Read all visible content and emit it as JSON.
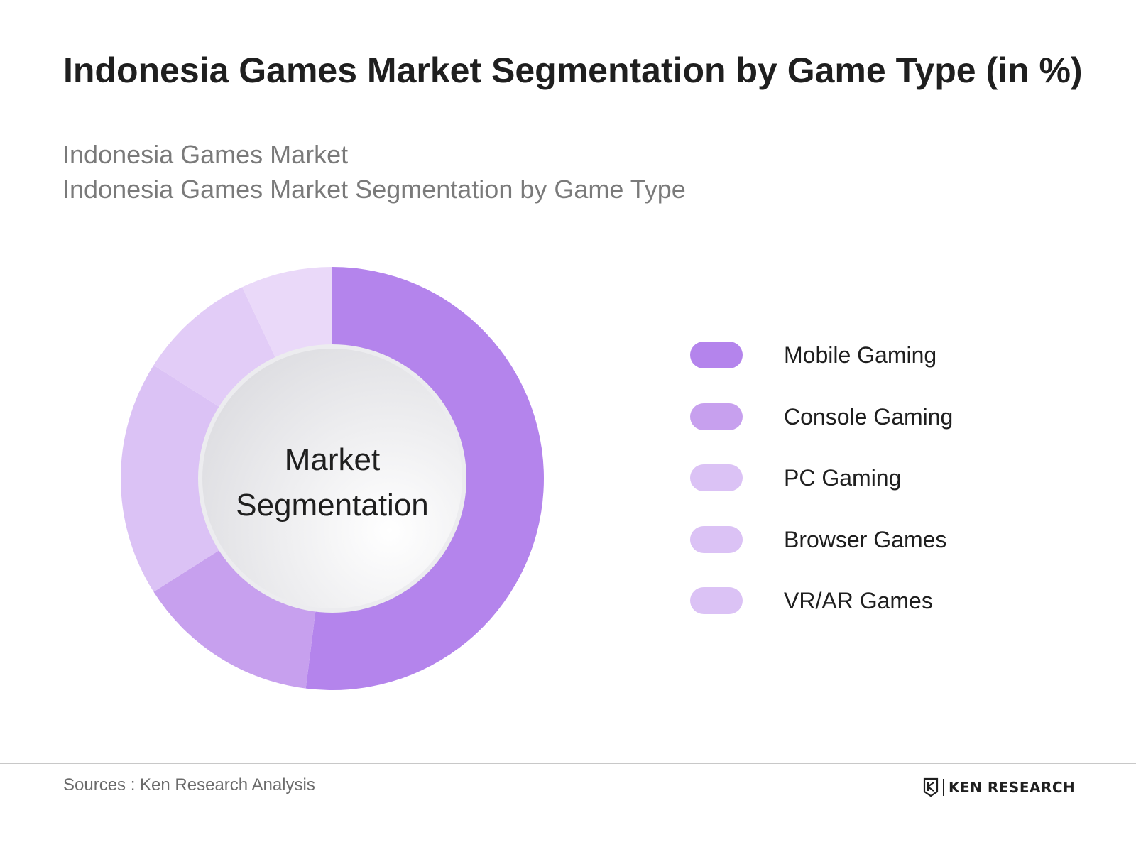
{
  "header": {
    "title": "Indonesia Games Market Segmentation by Game Type (in %)",
    "subtitle_line1": "Indonesia Games Market",
    "subtitle_line2": "Indonesia Games Market Segmentation by Game Type"
  },
  "chart_data": {
    "type": "pie",
    "center_label_line1": "Market",
    "center_label_line2": "Segmentation",
    "categories": [
      "Mobile Gaming",
      "Console Gaming",
      "PC Gaming",
      "Browser Games",
      "VR/AR Games"
    ],
    "values": [
      52,
      14,
      18,
      9,
      7
    ],
    "colors": [
      "#b484ec",
      "#c7a0ee",
      "#dbc2f5",
      "#e2ccf7",
      "#ead9f9"
    ],
    "legend_colors": [
      "#b484ec",
      "#c7a0ee",
      "#dbc2f5",
      "#dbc2f5",
      "#dbc2f5"
    ],
    "legend_position": "right"
  },
  "footer": {
    "source": "Sources : Ken Research Analysis",
    "brand": "KEN RESEARCH",
    "brand_icon": "ken-research-logo-icon"
  }
}
